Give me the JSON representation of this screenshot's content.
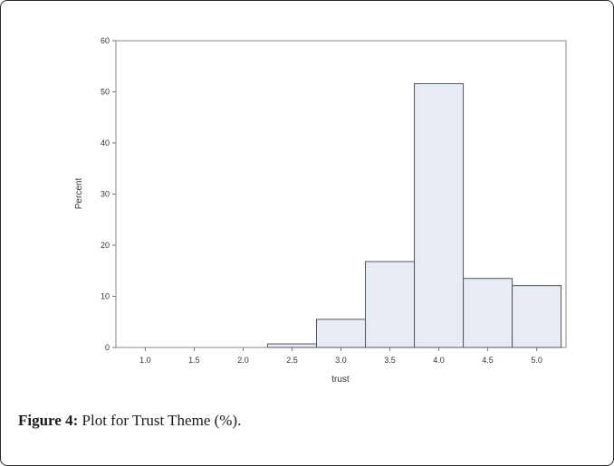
{
  "chart_data": {
    "type": "bar",
    "xlabel": "trust",
    "ylabel": "Percent",
    "xlim": [
      0.7,
      5.3
    ],
    "ylim": [
      0,
      60
    ],
    "x_ticks": [
      "1.0",
      "1.5",
      "2.0",
      "2.5",
      "3.0",
      "3.5",
      "4.0",
      "4.5",
      "5.0"
    ],
    "y_ticks": [
      "0",
      "10",
      "20",
      "30",
      "40",
      "50",
      "60"
    ],
    "bin_width": 0.5,
    "bins": [
      {
        "center": 2.5,
        "value": 0.7
      },
      {
        "center": 3.0,
        "value": 5.5
      },
      {
        "center": 3.5,
        "value": 16.8
      },
      {
        "center": 4.0,
        "value": 51.6
      },
      {
        "center": 4.5,
        "value": 13.5
      },
      {
        "center": 5.0,
        "value": 12.1
      }
    ],
    "grid": false,
    "bar_fill": "#e7ebf3",
    "bar_stroke": "#555555"
  },
  "caption": {
    "lead": "Figure 4:",
    "text": " Plot for Trust Theme (%)."
  }
}
